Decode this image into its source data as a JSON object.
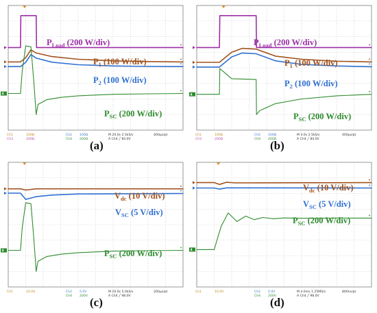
{
  "figure": {
    "colors": {
      "load": "#9b2fa6",
      "p1": "#a0521d",
      "p2": "#2f6fd0",
      "sc": "#2e8b2e",
      "vdc": "#a0521d",
      "vsc": "#2f6fd0",
      "ch_text_1": "#c0871a",
      "ch_text_2": "#3a7ac8",
      "ch_text_3": "#b04cb5",
      "ch_text_4": "#2e8b2e",
      "trigger": "#e08a1a"
    },
    "panels": [
      {
        "id": "a",
        "letter": "(a)",
        "labels": [
          {
            "main": "P",
            "sub": "Load",
            "rest": " (200 W/div)",
            "color": "#9b2fa6"
          },
          {
            "main": "P",
            "sub": "1",
            "rest": " (100 W/div)",
            "color": "#a0521d"
          },
          {
            "main": "P",
            "sub": "2",
            "rest": " (100 W/div)",
            "color": "#2f6fd0"
          },
          {
            "main": "P",
            "sub": "SC",
            "rest": " (200 W/div)",
            "color": "#2e8b2e"
          }
        ],
        "footer": {
          "ch1": "Ch1",
          "ch1_val": "100Ω",
          "ch2": "Ch2",
          "ch2_val": "100Ω",
          "ch3": "Ch3",
          "ch3_val": "200Ω",
          "ch4": "Ch4",
          "ch4_val": "200Ω",
          "timebase": "M 20.0s 2.5kS/s",
          "trigger": "A Ch4 ╱ 84.0V",
          "record": "400µs/pt"
        }
      },
      {
        "id": "b",
        "letter": "(b)",
        "labels": [
          {
            "main": "P",
            "sub": "Load",
            "rest": " (200 W/div)",
            "color": "#9b2fa6"
          },
          {
            "main": "P",
            "sub": "1",
            "rest": " (100 W/div)",
            "color": "#a0521d"
          },
          {
            "main": "P",
            "sub": "2",
            "rest": " (100 W/div)",
            "color": "#2f6fd0"
          },
          {
            "main": "P",
            "sub": "SC",
            "rest": " (200 W/div)",
            "color": "#2e8b2e"
          }
        ],
        "footer": {
          "ch1": "Ch1",
          "ch1_val": "100Ω",
          "ch2": "Ch2",
          "ch2_val": "100Ω",
          "ch3": "Ch3",
          "ch3_val": "200Ω",
          "ch4": "Ch4",
          "ch4_val": "200Ω",
          "timebase": "M 4.0s 2.5kS/s",
          "trigger": "A Ch4 ╱ 84.0V",
          "record": "400µs/pt"
        }
      },
      {
        "id": "c",
        "letter": "(c)",
        "labels": [
          {
            "main": "V",
            "sub": "dc",
            "rest": " (10 V/div)",
            "color": "#a0521d"
          },
          {
            "main": "V",
            "sub": "SC",
            "rest": " (5 V/div)",
            "color": "#2f6fd0"
          },
          {
            "main": "P",
            "sub": "SC",
            "rest": " (200 W/div)",
            "color": "#2e8b2e"
          }
        ],
        "footer": {
          "ch1": "Ch1",
          "ch1_val": "10.0V",
          "ch2": "Ch2",
          "ch2_val": "5.0V",
          "ch3": "",
          "ch3_val": "",
          "ch4": "Ch4",
          "ch4_val": "200V",
          "timebase": "M 20.0s 5.0kS/s",
          "trigger": "A Ch4 ╱ 98.0V",
          "record": "200µs/pt"
        }
      },
      {
        "id": "d",
        "letter": "(d)",
        "labels": [
          {
            "main": "V",
            "sub": "dc",
            "rest": " (10 V/div)",
            "color": "#a0521d"
          },
          {
            "main": "V",
            "sub": "SC",
            "rest": " (5 V/div)",
            "color": "#2f6fd0"
          },
          {
            "main": "P",
            "sub": "SC",
            "rest": " (200 W/div)",
            "color": "#2e8b2e"
          }
        ],
        "footer": {
          "ch1": "Ch1",
          "ch1_val": "10.0V",
          "ch2": "Ch2",
          "ch2_val": "5.0V",
          "ch3": "",
          "ch3_val": "",
          "ch4": "Ch4",
          "ch4_val": "200V",
          "timebase": "M 4.0ms 1.25MS/s",
          "trigger": "A Ch4 ╱ 98.0V",
          "record": "800ns/pt"
        }
      }
    ]
  },
  "chart_data": [
    {
      "type": "line",
      "panel": "(a)",
      "grid": true,
      "x_divisions": 10,
      "y_divisions": 8,
      "xlabel": "",
      "ylabel": "",
      "series": [
        {
          "name": "P_Load (200 W/div)",
          "unit": "div",
          "x": [
            0,
            0.7,
            0.72,
            1.6,
            1.62,
            10
          ],
          "y": [
            5.3,
            5.3,
            7.35,
            7.35,
            5.3,
            5.3
          ]
        },
        {
          "name": "P_1 (100 W/div)",
          "unit": "div",
          "x": [
            0,
            0.7,
            1.0,
            1.3,
            1.6,
            2.5,
            4,
            6,
            8,
            10
          ],
          "y": [
            4.38,
            4.38,
            4.65,
            5.15,
            4.95,
            4.72,
            4.55,
            4.45,
            4.4,
            4.38
          ]
        },
        {
          "name": "P_2 (100 W/div)",
          "unit": "div",
          "x": [
            0,
            0.7,
            1.0,
            1.3,
            1.6,
            2.5,
            4,
            6,
            8,
            10
          ],
          "y": [
            4.08,
            4.08,
            4.35,
            4.85,
            4.62,
            4.36,
            4.2,
            4.12,
            4.09,
            4.08
          ]
        },
        {
          "name": "P_SC (200 W/div)",
          "unit": "div",
          "x": [
            0,
            0.7,
            0.8,
            1.0,
            1.3,
            1.45,
            1.6,
            1.7,
            2.2,
            3,
            4,
            6,
            8,
            10
          ],
          "y": [
            2.35,
            2.35,
            3.8,
            5.4,
            5.35,
            3.3,
            1.0,
            1.65,
            1.95,
            2.1,
            2.2,
            2.3,
            2.33,
            2.35
          ]
        }
      ]
    },
    {
      "type": "line",
      "panel": "(b)",
      "grid": true,
      "x_divisions": 10,
      "y_divisions": 8,
      "xlabel": "",
      "ylabel": "",
      "series": [
        {
          "name": "P_Load (200 W/div)",
          "unit": "div",
          "x": [
            0,
            1.3,
            1.32,
            3.4,
            3.42,
            10
          ],
          "y": [
            5.3,
            5.3,
            7.35,
            7.35,
            5.3,
            5.3
          ]
        },
        {
          "name": "P_1 (100 W/div)",
          "unit": "div",
          "x": [
            0,
            1.3,
            2.0,
            2.6,
            3.4,
            4.5,
            6,
            8,
            10
          ],
          "y": [
            4.35,
            4.35,
            5.0,
            5.25,
            5.2,
            4.75,
            4.55,
            4.42,
            4.38
          ]
        },
        {
          "name": "P_2 (100 W/div)",
          "unit": "div",
          "x": [
            0,
            1.3,
            2.0,
            2.6,
            3.4,
            4.5,
            6,
            8,
            10
          ],
          "y": [
            4.05,
            4.05,
            4.7,
            4.95,
            4.9,
            4.45,
            4.22,
            4.12,
            4.07
          ]
        },
        {
          "name": "P_SC (200 W/div)",
          "unit": "div",
          "x": [
            0,
            1.3,
            1.32,
            2.0,
            3.4,
            3.42,
            3.6,
            4.5,
            6,
            8,
            10
          ],
          "y": [
            2.3,
            2.3,
            3.95,
            3.3,
            3.25,
            1.0,
            1.25,
            1.7,
            2.0,
            2.2,
            2.3
          ]
        }
      ]
    },
    {
      "type": "line",
      "panel": "(c)",
      "grid": true,
      "x_divisions": 10,
      "y_divisions": 8,
      "xlabel": "",
      "ylabel": "",
      "series": [
        {
          "name": "V_dc (10 V/div)",
          "unit": "div",
          "x": [
            0,
            0.7,
            1.0,
            1.6,
            10
          ],
          "y": [
            6.3,
            6.3,
            6.22,
            6.3,
            6.3
          ]
        },
        {
          "name": "V_SC (5 V/div)",
          "unit": "div",
          "x": [
            0,
            0.7,
            1.0,
            1.6,
            2.5,
            4,
            10
          ],
          "y": [
            6.02,
            6.02,
            5.62,
            5.8,
            5.9,
            5.97,
            6.0
          ]
        },
        {
          "name": "P_SC (200 W/div)",
          "unit": "div",
          "x": [
            0,
            0.7,
            0.8,
            1.0,
            1.3,
            1.45,
            1.6,
            1.7,
            2.2,
            3,
            4,
            6,
            8,
            10
          ],
          "y": [
            2.35,
            2.35,
            3.8,
            5.4,
            5.35,
            3.3,
            1.0,
            1.65,
            1.95,
            2.1,
            2.2,
            2.3,
            2.33,
            2.35
          ]
        }
      ]
    },
    {
      "type": "line",
      "panel": "(d)",
      "grid": true,
      "x_divisions": 10,
      "y_divisions": 8,
      "xlabel": "",
      "ylabel": "",
      "series": [
        {
          "name": "V_dc (10 V/div)",
          "unit": "div",
          "x": [
            0,
            1.0,
            1.3,
            1.7,
            2.2,
            10
          ],
          "y": [
            6.7,
            6.7,
            6.58,
            6.72,
            6.68,
            6.7
          ]
        },
        {
          "name": "V_SC (5 V/div)",
          "unit": "div",
          "x": [
            0,
            1.0,
            1.3,
            1.7,
            10
          ],
          "y": [
            6.35,
            6.35,
            6.28,
            6.36,
            6.35
          ]
        },
        {
          "name": "P_SC (200 W/div)",
          "unit": "div",
          "x": [
            0,
            1.0,
            1.05,
            1.4,
            1.8,
            2.3,
            2.8,
            3.3,
            3.8,
            4.4,
            5,
            6,
            8,
            10
          ],
          "y": [
            2.4,
            2.4,
            2.6,
            3.9,
            4.75,
            4.2,
            4.55,
            4.32,
            4.46,
            4.38,
            4.43,
            4.41,
            4.42,
            4.42
          ]
        }
      ]
    }
  ]
}
